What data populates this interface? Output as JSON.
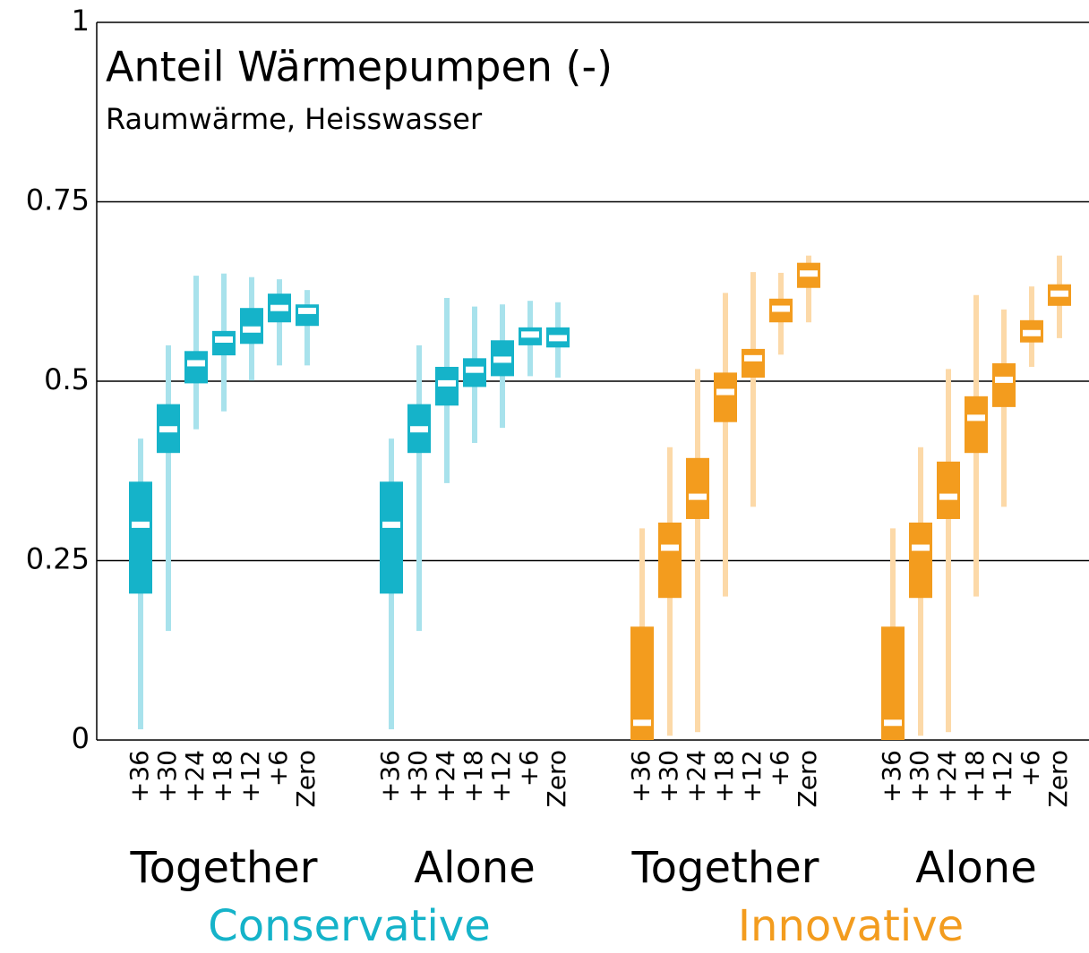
{
  "chart_data": {
    "type": "box",
    "title": "Anteil Wärmepumpen (-)",
    "subtitle": "Raumwärme, Heisswasser",
    "categories": [
      "+36",
      "+30",
      "+24",
      "+18",
      "+12",
      "+6",
      "Zero"
    ],
    "ylim": [
      0,
      1
    ],
    "yticks": [
      0,
      0.25,
      0.5,
      0.75,
      1
    ],
    "grid": true,
    "groups": [
      {
        "name": "Conservative",
        "color": "#15b3c9",
        "whisker_color": "#a8e2ec",
        "series": [
          {
            "name": "Together",
            "whisker_low": [
              0.015,
              0.152,
              0.433,
              0.458,
              0.501,
              0.522,
              0.522
            ],
            "q1": [
              0.204,
              0.4,
              0.497,
              0.536,
              0.552,
              0.582,
              0.577
            ],
            "median": [
              0.3,
              0.433,
              0.525,
              0.558,
              0.572,
              0.602,
              0.598
            ],
            "q3": [
              0.36,
              0.468,
              0.542,
              0.57,
              0.602,
              0.622,
              0.607
            ],
            "whisker_high": [
              0.42,
              0.55,
              0.647,
              0.65,
              0.645,
              0.642,
              0.627
            ]
          },
          {
            "name": "Alone",
            "whisker_low": [
              0.015,
              0.152,
              0.358,
              0.414,
              0.435,
              0.507,
              0.505
            ],
            "q1": [
              0.204,
              0.4,
              0.466,
              0.492,
              0.507,
              0.55,
              0.547
            ],
            "median": [
              0.3,
              0.433,
              0.497,
              0.516,
              0.53,
              0.565,
              0.56
            ],
            "q3": [
              0.36,
              0.468,
              0.52,
              0.532,
              0.557,
              0.575,
              0.575
            ],
            "whisker_high": [
              0.42,
              0.55,
              0.616,
              0.604,
              0.607,
              0.612,
              0.61
            ]
          }
        ]
      },
      {
        "name": "Innovative",
        "color": "#f39c1e",
        "whisker_color": "#fcd9a8",
        "series": [
          {
            "name": "Together",
            "whisker_low": [
              0.006,
              0.006,
              0.011,
              0.2,
              0.325,
              0.537,
              0.582
            ],
            "q1": [
              0,
              0.198,
              0.308,
              0.443,
              0.505,
              0.582,
              0.63
            ],
            "median": [
              0.024,
              0.268,
              0.339,
              0.485,
              0.532,
              0.601,
              0.65
            ],
            "q3": [
              0.158,
              0.303,
              0.393,
              0.512,
              0.545,
              0.615,
              0.665
            ],
            "whisker_high": [
              0.295,
              0.408,
              0.517,
              0.623,
              0.652,
              0.651,
              0.675
            ]
          },
          {
            "name": "Alone",
            "whisker_low": [
              0.006,
              0.006,
              0.011,
              0.2,
              0.325,
              0.52,
              0.56
            ],
            "q1": [
              0,
              0.198,
              0.308,
              0.4,
              0.464,
              0.554,
              0.605
            ],
            "median": [
              0.024,
              0.268,
              0.339,
              0.449,
              0.502,
              0.567,
              0.622
            ],
            "q3": [
              0.158,
              0.303,
              0.388,
              0.479,
              0.525,
              0.585,
              0.635
            ],
            "whisker_high": [
              0.295,
              0.408,
              0.517,
              0.62,
              0.6,
              0.632,
              0.675
            ]
          }
        ]
      }
    ]
  }
}
